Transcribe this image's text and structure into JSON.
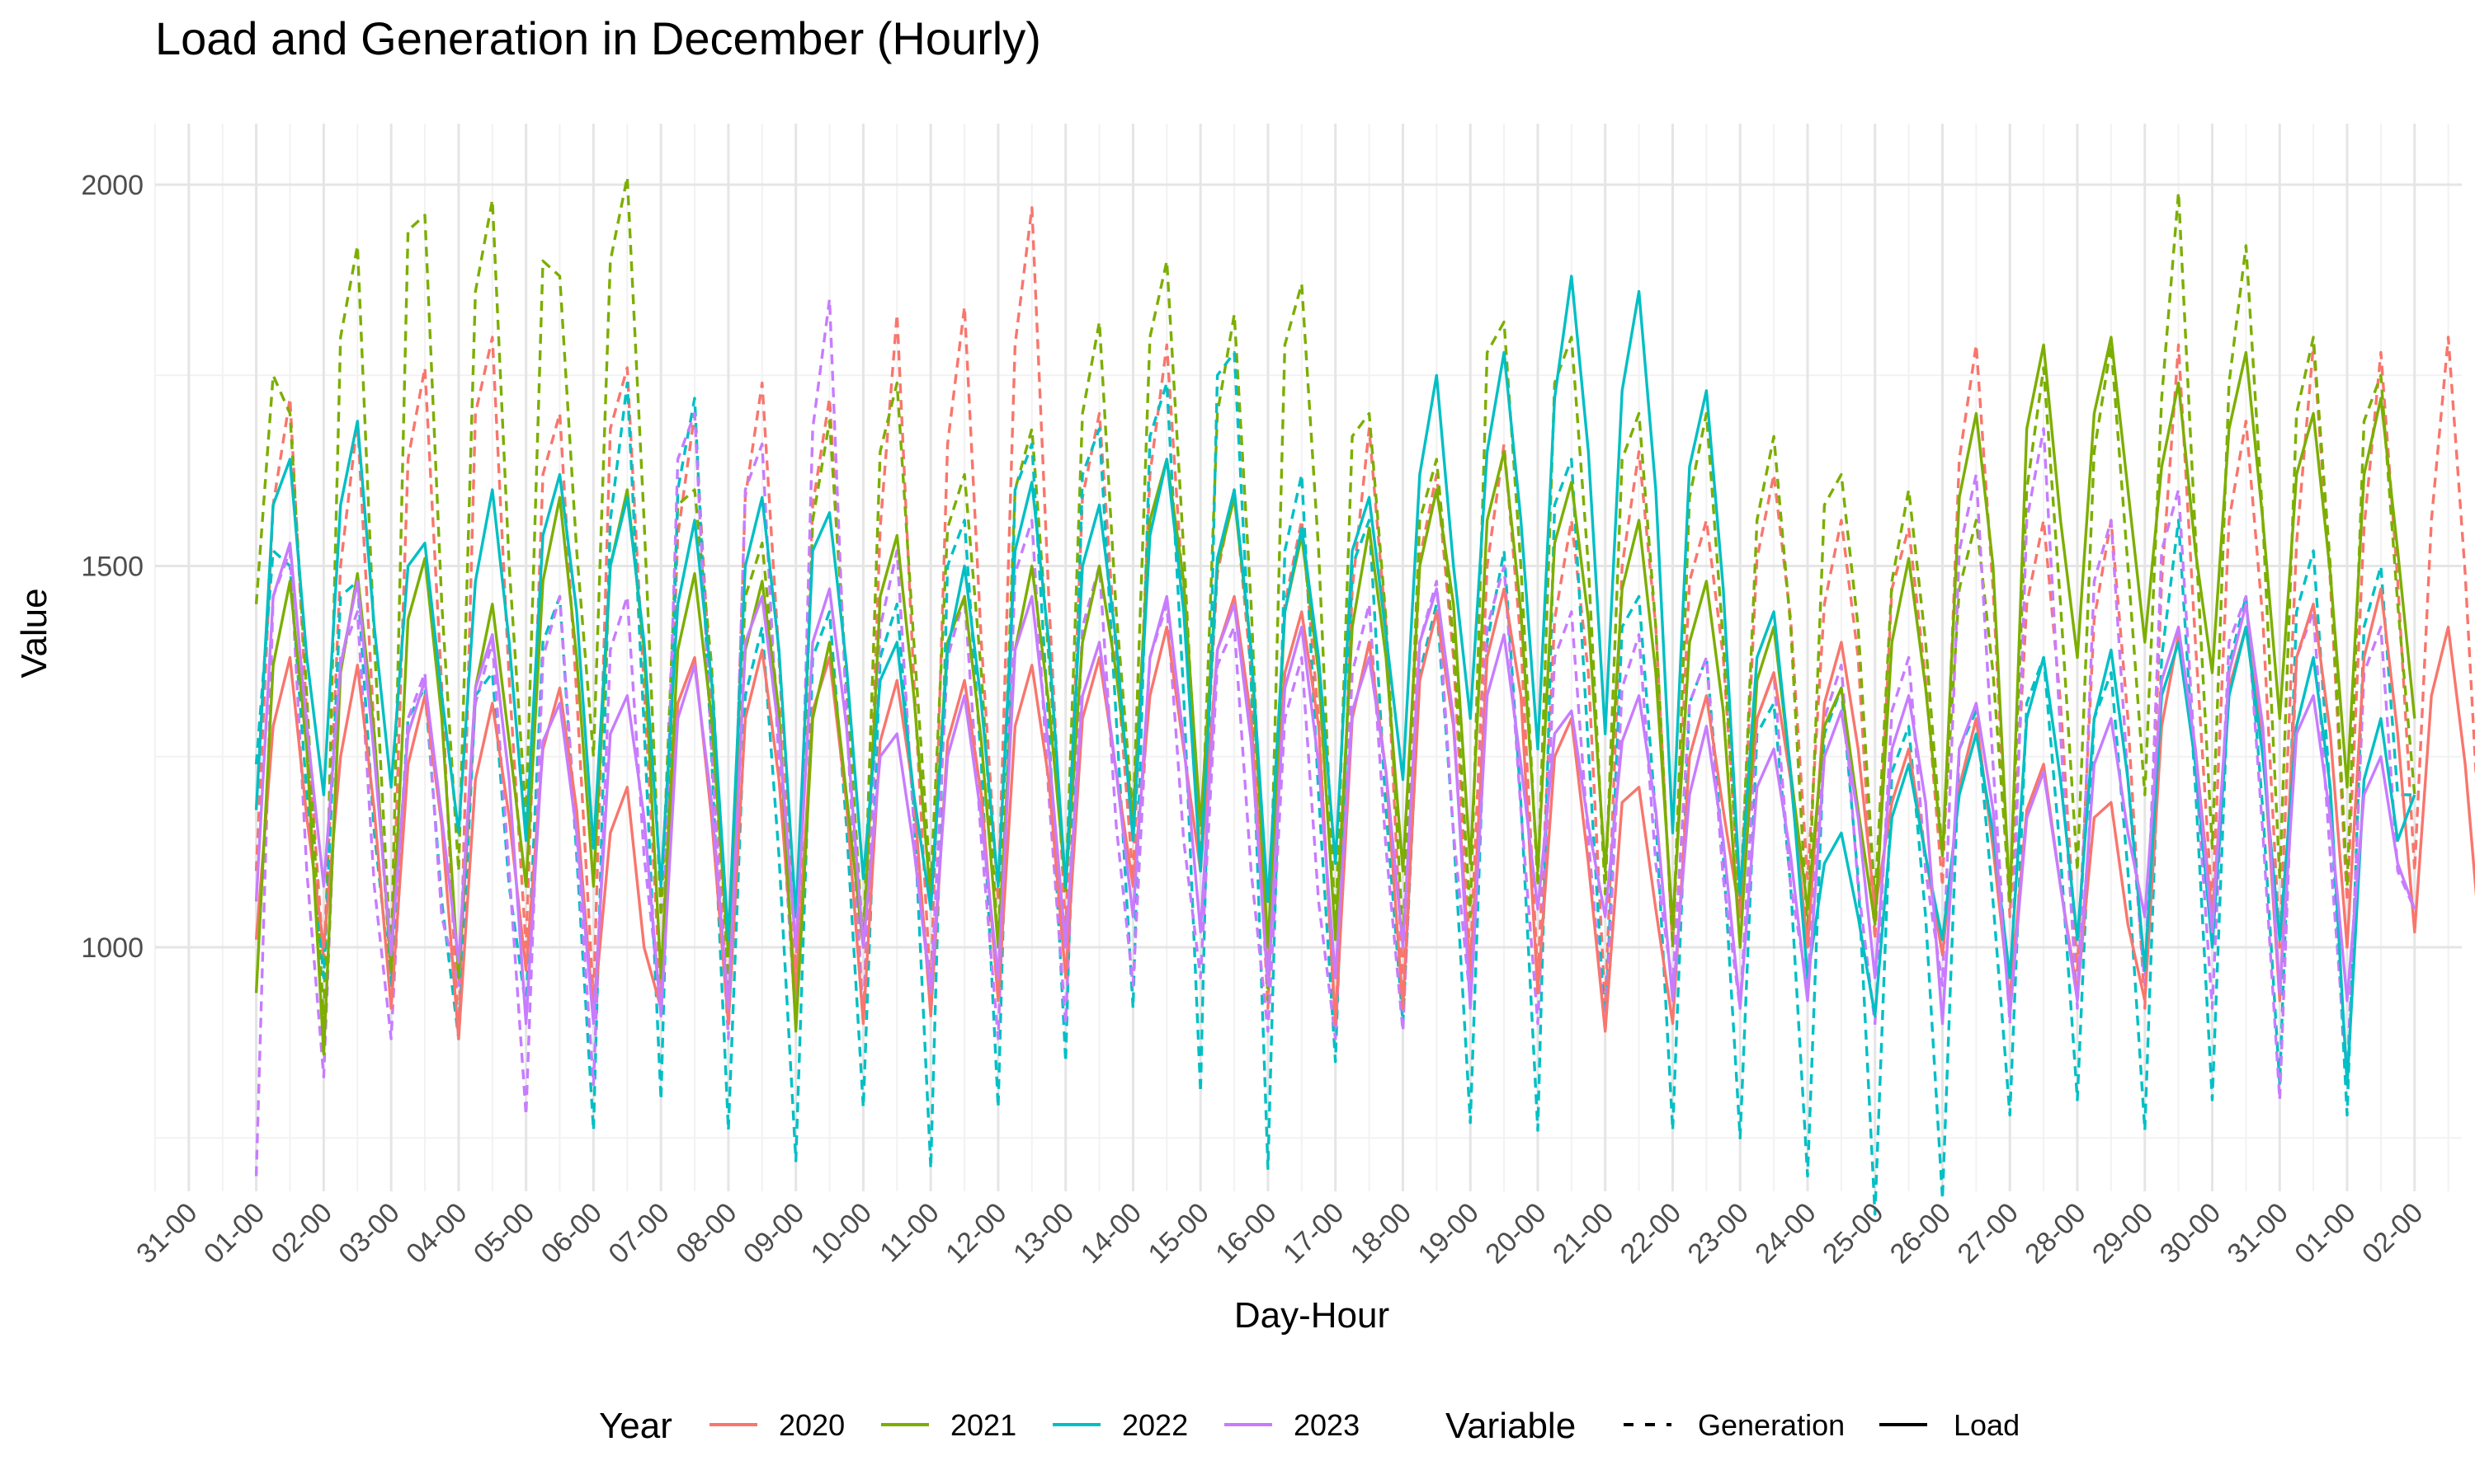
{
  "chart_data": {
    "type": "line",
    "title": "Load and Generation in December (Hourly)",
    "xlabel": "Day-Hour",
    "ylabel": "Value",
    "x_ticks": [
      "31-00",
      "01-00",
      "02-00",
      "03-00",
      "04-00",
      "05-00",
      "06-00",
      "07-00",
      "08-00",
      "09-00",
      "10-00",
      "11-00",
      "12-00",
      "13-00",
      "14-00",
      "15-00",
      "16-00",
      "17-00",
      "18-00",
      "19-00",
      "20-00",
      "21-00",
      "22-00",
      "23-00",
      "24-00",
      "25-00",
      "26-00",
      "27-00",
      "28-00",
      "29-00",
      "30-00",
      "31-00",
      "01-00",
      "02-00"
    ],
    "x_range_days": [
      -1.5,
      32.7
    ],
    "y_ticks": [
      1000,
      1500,
      2000
    ],
    "ylim": [
      680,
      2080
    ],
    "grid": true,
    "legend": {
      "position": "bottom",
      "year_title": "Year",
      "variable_title": "Variable",
      "years": [
        "2020",
        "2021",
        "2022",
        "2023"
      ],
      "variables": [
        "Generation",
        "Load"
      ]
    },
    "colors": {
      "2020": "#F8766D",
      "2021": "#7CAE00",
      "2022": "#00BFC4",
      "2023": "#C77CFF"
    },
    "note_x": "x values are hours since 01-00 (December 1, 00:00), sampled every 6 hours through 01-00 of January",
    "series": [
      {
        "name": "2020",
        "variable": "Load",
        "x_step_hours": 6,
        "values": [
          1010,
          1290,
          1380,
          1170,
          1000,
          1250,
          1370,
          1180,
          920,
          1240,
          1330,
          1160,
          880,
          1220,
          1320,
          1170,
          970,
          1260,
          1340,
          1180,
          910,
          1150,
          1210,
          1000,
          920,
          1320,
          1380,
          1170,
          900,
          1300,
          1390,
          1220,
          940,
          1310,
          1380,
          1190,
          900,
          1270,
          1350,
          1200,
          910,
          1270,
          1350,
          1200,
          930,
          1290,
          1370,
          1220,
          960,
          1300,
          1380,
          1230,
          1080,
          1330,
          1420,
          1260,
          1100,
          1390,
          1460,
          1300,
          960,
          1360,
          1440,
          1290,
          900,
          1300,
          1400,
          1230,
          920,
          1350,
          1440,
          1290,
          960,
          1380,
          1470,
          1330,
          940,
          1250,
          1300,
          1110,
          890,
          1190,
          1210,
          1050,
          900,
          1250,
          1330,
          1180,
          1040,
          1300,
          1360,
          1220,
          1000,
          1320,
          1400,
          1260,
          1050,
          1190,
          1260,
          1120,
          990,
          1210,
          1300,
          1130,
          930,
          1180,
          1240,
          1080,
          940,
          1170,
          1190,
          1030,
          930,
          1290,
          1410,
          1260,
          1040,
          1340,
          1420,
          1270,
          930,
          1380,
          1450,
          1280,
          1000,
          1380,
          1470,
          1280,
          1020,
          1330,
          1420,
          1240,
          980
        ]
      },
      {
        "name": "2021",
        "variable": "Load",
        "x_step_hours": 6,
        "values": [
          940,
          1370,
          1480,
          1260,
          860,
          1360,
          1490,
          1280,
          970,
          1430,
          1510,
          1300,
          960,
          1340,
          1450,
          1270,
          1080,
          1480,
          1590,
          1380,
          1080,
          1500,
          1600,
          1390,
          960,
          1390,
          1490,
          1300,
          990,
          1390,
          1480,
          1310,
          890,
          1300,
          1400,
          1200,
          1000,
          1460,
          1540,
          1330,
          1060,
          1400,
          1460,
          1270,
          1000,
          1390,
          1500,
          1320,
          1080,
          1400,
          1500,
          1360,
          1170,
          1560,
          1640,
          1480,
          1160,
          1500,
          1590,
          1390,
          1000,
          1440,
          1540,
          1360,
          1010,
          1420,
          1550,
          1380,
          1100,
          1500,
          1600,
          1450,
          1110,
          1560,
          1650,
          1440,
          1100,
          1530,
          1610,
          1430,
          1100,
          1470,
          1560,
          1360,
          1030,
          1400,
          1480,
          1310,
          1000,
          1350,
          1420,
          1230,
          1050,
          1290,
          1340,
          1180,
          1030,
          1400,
          1510,
          1340,
          1120,
          1590,
          1700,
          1500,
          1060,
          1680,
          1790,
          1560,
          1380,
          1700,
          1800,
          1600,
          1400,
          1630,
          1740,
          1520,
          1360,
          1680,
          1780,
          1560,
          1300,
          1620,
          1700,
          1490,
          1210,
          1620,
          1720,
          1520,
          1300
        ]
      },
      {
        "name": "2022",
        "variable": "Load",
        "x_step_hours": 6,
        "values": [
          1180,
          1580,
          1640,
          1380,
          1200,
          1580,
          1690,
          1420,
          1210,
          1500,
          1530,
          1330,
          1150,
          1480,
          1600,
          1400,
          1140,
          1540,
          1620,
          1440,
          1130,
          1500,
          1590,
          1400,
          1080,
          1450,
          1560,
          1350,
          1010,
          1500,
          1590,
          1390,
          1040,
          1520,
          1570,
          1370,
          1090,
          1350,
          1400,
          1200,
          1050,
          1390,
          1500,
          1320,
          1080,
          1520,
          1610,
          1400,
          1080,
          1500,
          1580,
          1400,
          1140,
          1540,
          1640,
          1440,
          1100,
          1510,
          1600,
          1390,
          1060,
          1440,
          1550,
          1380,
          1110,
          1520,
          1590,
          1410,
          1220,
          1620,
          1750,
          1500,
          1300,
          1650,
          1780,
          1560,
          1260,
          1720,
          1880,
          1650,
          1280,
          1730,
          1860,
          1600,
          1150,
          1630,
          1730,
          1470,
          1070,
          1380,
          1440,
          1230,
          960,
          1110,
          1150,
          1040,
          910,
          1170,
          1240,
          1120,
          1010,
          1200,
          1280,
          1150,
          960,
          1300,
          1380,
          1220,
          1010,
          1300,
          1390,
          1220,
          970,
          1330,
          1400,
          1240,
          1000,
          1330,
          1420,
          1250,
          1010,
          1290,
          1380,
          1210,
          820,
          1220,
          1300,
          1140,
          1200
        ]
      },
      {
        "name": "2023",
        "variable": "Load",
        "x_step_hours": 6,
        "values": [
          1060,
          1460,
          1530,
          1290,
          1080,
          1370,
          1480,
          1250,
          990,
          1280,
          1350,
          1170,
          980,
          1340,
          1410,
          1220,
          900,
          1270,
          1320,
          1150,
          900,
          1280,
          1330,
          1170,
          910,
          1300,
          1370,
          1190,
          920,
          1400,
          1460,
          1280,
          1000,
          1400,
          1470,
          1290,
          1000,
          1250,
          1280,
          1130,
          940,
          1250,
          1330,
          1170,
          960,
          1390,
          1460,
          1260,
          1000,
          1330,
          1400,
          1230,
          1040,
          1380,
          1460,
          1270,
          1020,
          1390,
          1450,
          1270,
          950,
          1340,
          1420,
          1240,
          960,
          1310,
          1380,
          1230,
          1000,
          1400,
          1470,
          1300,
          920,
          1330,
          1410,
          1240,
          1050,
          1280,
          1310,
          1160,
          1040,
          1270,
          1330,
          1180,
          930,
          1200,
          1290,
          1140,
          920,
          1210,
          1260,
          1120,
          930,
          1250,
          1310,
          1170,
          960,
          1260,
          1330,
          1190,
          900,
          1260,
          1320,
          1180,
          910,
          1170,
          1230,
          1080,
          930,
          1240,
          1300,
          1150,
          1040,
          1350,
          1420,
          1260,
          1020,
          1360,
          1450,
          1290,
          940,
          1280,
          1330,
          1170,
          930,
          1200,
          1250,
          1110,
          1050
        ]
      },
      {
        "name": "2020",
        "variable": "Generation",
        "x_step_hours": 6,
        "values": [
          1100,
          1580,
          1720,
          1300,
          980,
          1500,
          1690,
          1280,
          960,
          1640,
          1760,
          1340,
          880,
          1700,
          1800,
          1350,
          1000,
          1620,
          1700,
          1330,
          930,
          1680,
          1760,
          1340,
          930,
          1540,
          1700,
          1320,
          900,
          1590,
          1740,
          1380,
          970,
          1580,
          1720,
          1340,
          900,
          1550,
          1830,
          1350,
          940,
          1660,
          1840,
          1400,
          1060,
          1790,
          1970,
          1460,
          1020,
          1590,
          1700,
          1380,
          1090,
          1620,
          1790,
          1450,
          1100,
          1490,
          1600,
          1360,
          920,
          1450,
          1560,
          1300,
          890,
          1470,
          1680,
          1420,
          950,
          1510,
          1620,
          1380,
          980,
          1500,
          1660,
          1400,
          960,
          1430,
          1560,
          1360,
          920,
          1500,
          1650,
          1420,
          1000,
          1480,
          1560,
          1380,
          1050,
          1510,
          1620,
          1430,
          1090,
          1450,
          1560,
          1380,
          1010,
          1470,
          1550,
          1350,
          1080,
          1640,
          1790,
          1470,
          1040,
          1450,
          1560,
          1320,
          970,
          1430,
          1560,
          1300,
          920,
          1480,
          1790,
          1400,
          1050,
          1560,
          1690,
          1430,
          1000,
          1530,
          1790,
          1480,
          1060,
          1550,
          1780,
          1480,
          1100,
          1560,
          1800,
          1490,
          1080
        ]
      },
      {
        "name": "2021",
        "variable": "Generation",
        "x_step_hours": 6,
        "values": [
          1450,
          1750,
          1700,
          1330,
          900,
          1800,
          1920,
          1400,
          980,
          1940,
          1960,
          1450,
          1100,
          1860,
          1980,
          1500,
          1170,
          1900,
          1880,
          1520,
          1250,
          1900,
          2010,
          1560,
          1040,
          1580,
          1600,
          1370,
          950,
          1460,
          1530,
          1300,
          900,
          1560,
          1690,
          1350,
          1000,
          1650,
          1740,
          1400,
          1080,
          1550,
          1620,
          1360,
          1000,
          1600,
          1680,
          1380,
          1070,
          1700,
          1820,
          1440,
          1170,
          1800,
          1900,
          1520,
          1100,
          1700,
          1830,
          1450,
          930,
          1790,
          1870,
          1520,
          1020,
          1670,
          1700,
          1430,
          1010,
          1560,
          1640,
          1400,
          1040,
          1780,
          1820,
          1500,
          1080,
          1740,
          1800,
          1500,
          1070,
          1640,
          1700,
          1420,
          1000,
          1590,
          1700,
          1400,
          1050,
          1560,
          1670,
          1420,
          1020,
          1580,
          1620,
          1420,
          1060,
          1480,
          1600,
          1400,
          1120,
          1470,
          1560,
          1360,
          1060,
          1600,
          1760,
          1450,
          1100,
          1650,
          1790,
          1500,
          1200,
          1720,
          1990,
          1540,
          1130,
          1740,
          1920,
          1560,
          1090,
          1700,
          1800,
          1500,
          1080,
          1690,
          1750,
          1450,
          1200
        ]
      },
      {
        "name": "2022",
        "variable": "Generation",
        "x_step_hours": 6,
        "values": [
          1240,
          1520,
          1500,
          1200,
          960,
          1460,
          1480,
          1150,
          950,
          1300,
          1340,
          1060,
          880,
          1330,
          1360,
          1080,
          920,
          1400,
          1460,
          1120,
          760,
          1560,
          1740,
          1290,
          800,
          1600,
          1720,
          1250,
          760,
          1330,
          1420,
          1120,
          720,
          1380,
          1440,
          1160,
          790,
          1380,
          1450,
          1180,
          710,
          1500,
          1560,
          1240,
          790,
          1600,
          1660,
          1290,
          850,
          1620,
          1680,
          1300,
          920,
          1670,
          1740,
          1330,
          810,
          1750,
          1780,
          1350,
          710,
          1520,
          1620,
          1200,
          850,
          1500,
          1560,
          1180,
          900,
          1360,
          1450,
          1150,
          770,
          1400,
          1520,
          1190,
          760,
          1580,
          1640,
          1260,
          890,
          1420,
          1460,
          1170,
          760,
          1320,
          1380,
          1120,
          750,
          1280,
          1320,
          1080,
          700,
          1280,
          1340,
          1090,
          650,
          1230,
          1290,
          1040,
          670,
          1260,
          1310,
          1060,
          780,
          1320,
          1380,
          1120,
          800,
          1300,
          1360,
          1100,
          760,
          1380,
          1560,
          1210,
          800,
          1370,
          1460,
          1180,
          820,
          1440,
          1520,
          1200,
          780,
          1420,
          1500,
          1200,
          1200
        ]
      },
      {
        "name": "2023",
        "variable": "Generation",
        "x_step_hours": 6,
        "values": [
          700,
          1460,
          1520,
          1100,
          830,
          1380,
          1440,
          1080,
          880,
          1300,
          1360,
          1040,
          950,
          1320,
          1400,
          1100,
          780,
          1380,
          1460,
          1140,
          820,
          1390,
          1460,
          1120,
          920,
          1640,
          1700,
          1260,
          880,
          1600,
          1660,
          1240,
          900,
          1680,
          1850,
          1300,
          900,
          1420,
          1520,
          1160,
          940,
          1380,
          1460,
          1140,
          880,
          1490,
          1560,
          1200,
          900,
          1420,
          1500,
          1160,
          950,
          1380,
          1450,
          1140,
          960,
          1370,
          1420,
          1100,
          890,
          1300,
          1380,
          1060,
          880,
          1360,
          1450,
          1130,
          890,
          1400,
          1480,
          1150,
          930,
          1420,
          1500,
          1180,
          900,
          1380,
          1440,
          1140,
          890,
          1340,
          1410,
          1110,
          950,
          1320,
          1380,
          1090,
          920,
          1300,
          1360,
          1080,
          950,
          1300,
          1370,
          1080,
          900,
          1310,
          1380,
          1100,
          950,
          1520,
          1620,
          1240,
          900,
          1560,
          1680,
          1280,
          920,
          1480,
          1560,
          1220,
          950,
          1520,
          1600,
          1240,
          920,
          1400,
          1460,
          1150,
          800,
          1380,
          1440,
          1120,
          830,
          1360,
          1420,
          1100,
          1050
        ]
      }
    ]
  }
}
